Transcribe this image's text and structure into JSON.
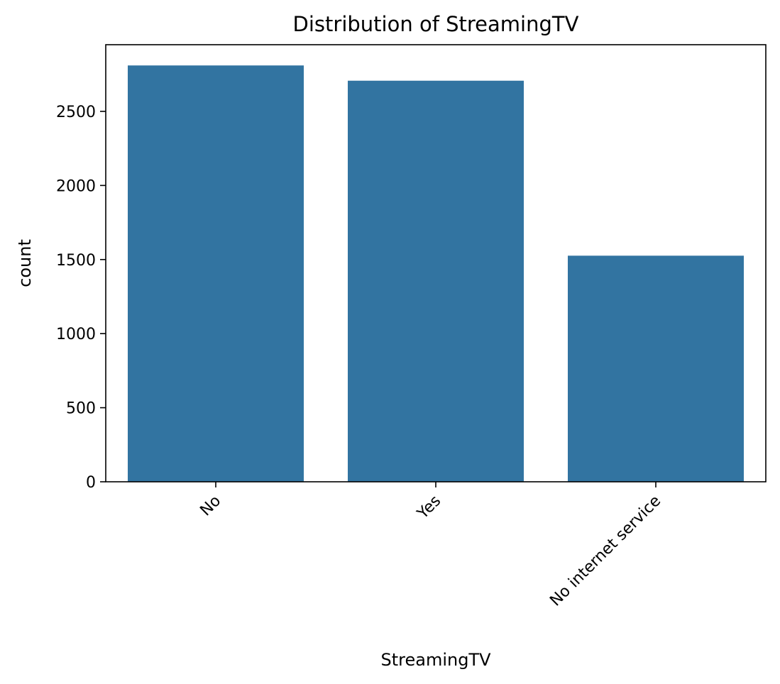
{
  "chart_data": {
    "type": "bar",
    "title": "Distribution of StreamingTV",
    "xlabel": "StreamingTV",
    "ylabel": "count",
    "categories": [
      "No",
      "Yes",
      "No internet service"
    ],
    "values": [
      2810,
      2707,
      1526
    ],
    "ylim": [
      0,
      2950
    ],
    "yticks": [
      0,
      500,
      1000,
      1500,
      2000,
      2500
    ],
    "ytick_labels": [
      "0",
      "500",
      "1000",
      "1500",
      "2000",
      "2500"
    ],
    "grid": false,
    "legend": "none",
    "bar_color": "#3274a1"
  }
}
